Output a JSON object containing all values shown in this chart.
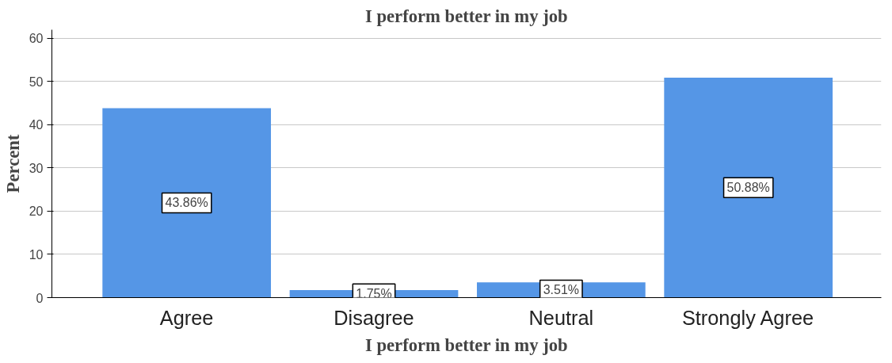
{
  "chart_data": {
    "type": "bar",
    "title": "I perform better in my job",
    "xlabel": "I perform better in my job",
    "ylabel": "Percent",
    "categories": [
      "Agree",
      "Disagree",
      "Neutral",
      "Strongly Agree"
    ],
    "values": [
      43.86,
      1.75,
      3.51,
      50.88
    ],
    "value_labels": [
      "43.86%",
      "1.75%",
      "3.51%",
      "50.88%"
    ],
    "color": "#5596e6",
    "ylim": [
      0,
      62
    ],
    "yticks": [
      0,
      10,
      20,
      30,
      40,
      50,
      60
    ],
    "grid": "y"
  }
}
